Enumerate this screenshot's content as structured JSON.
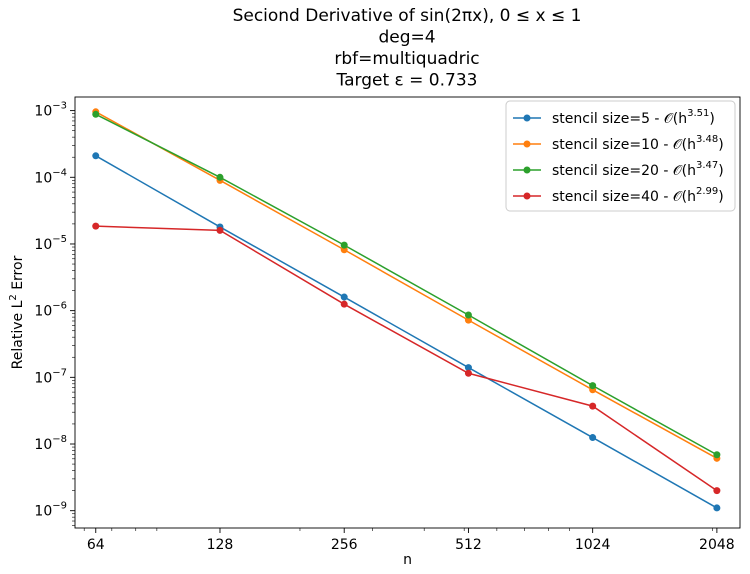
{
  "chart_data": {
    "type": "line",
    "title_lines": [
      "Seciond Derivative of sin(2πx), 0 ≤ x ≤ 1",
      "deg=4",
      "rbf=multiquadric",
      "Target ε = 0.733"
    ],
    "xlabel": "n",
    "ylabel": "Relative L² Error",
    "x_scale": "log2",
    "y_scale": "log10",
    "x": [
      64,
      128,
      256,
      512,
      1024,
      2048
    ],
    "x_tick_labels": [
      "64",
      "128",
      "256",
      "512",
      "1024",
      "2048"
    ],
    "xlim": [
      57,
      2330
    ],
    "ylim": [
      5.5e-10,
      0.0016
    ],
    "y_ticks": [
      {
        "value": 1e-09,
        "base": "10",
        "exp": "−9"
      },
      {
        "value": 1e-08,
        "base": "10",
        "exp": "−8"
      },
      {
        "value": 1e-07,
        "base": "10",
        "exp": "−7"
      },
      {
        "value": 1e-06,
        "base": "10",
        "exp": "−6"
      },
      {
        "value": 1e-05,
        "base": "10",
        "exp": "−5"
      },
      {
        "value": 0.0001,
        "base": "10",
        "exp": "−4"
      },
      {
        "value": 0.001,
        "base": "10",
        "exp": "−3"
      }
    ],
    "grid": false,
    "legend_position": "top-right",
    "series": [
      {
        "name": "stencil size=5 - 𝒪(h^3.51)",
        "label_main": "stencil size=5 - 𝒪(h",
        "label_exp": "3.51",
        "label_end": ")",
        "color": "#1f77b4",
        "values": [
          0.00021,
          1.8e-05,
          1.6e-06,
          1.4e-07,
          1.25e-08,
          1.1e-09
        ]
      },
      {
        "name": "stencil size=10 - 𝒪(h^3.48)",
        "label_main": "stencil size=10 - 𝒪(h",
        "label_exp": "3.48",
        "label_end": ")",
        "color": "#ff7f0e",
        "values": [
          0.00096,
          9e-05,
          8.2e-06,
          7.2e-07,
          6.5e-08,
          6.1e-09
        ]
      },
      {
        "name": "stencil size=20 - 𝒪(h^3.47)",
        "label_main": "stencil size=20 - 𝒪(h",
        "label_exp": "3.47",
        "label_end": ")",
        "color": "#2ca02c",
        "values": [
          0.00088,
          0.0001,
          9.6e-06,
          8.6e-07,
          7.5e-08,
          6.9e-09
        ]
      },
      {
        "name": "stencil size=40 - 𝒪(h^2.99)",
        "label_main": "stencil size=40 - 𝒪(h",
        "label_exp": "2.99",
        "label_end": ")",
        "color": "#d62728",
        "values": [
          1.85e-05,
          1.6e-05,
          1.25e-06,
          1.15e-07,
          3.7e-08,
          2e-09
        ]
      }
    ]
  }
}
